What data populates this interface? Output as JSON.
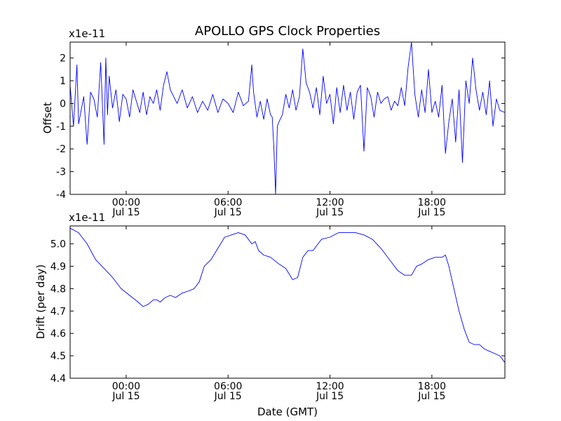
{
  "title": "APOLLO GPS Clock Properties",
  "colors": {
    "line": "#0000ff",
    "axes": "#000000",
    "background": "#ffffff"
  },
  "chart_data": [
    {
      "type": "line",
      "title": "APOLLO GPS Clock Properties",
      "ylabel": "Offset",
      "xlabel": "",
      "scale_label": "x1e-11",
      "x_unit": "hours relative to Jul 15 00:00 GMT",
      "xlim": [
        -3.3,
        22.3
      ],
      "ylim": [
        -4,
        2.7
      ],
      "yticks": [
        -4,
        -3,
        -2,
        -1,
        0,
        1,
        2
      ],
      "xticks": [
        {
          "x": 0,
          "time": "00:00",
          "date": "Jul 15"
        },
        {
          "x": 6,
          "time": "06:00",
          "date": "Jul 15"
        },
        {
          "x": 12,
          "time": "12:00",
          "date": "Jul 15"
        },
        {
          "x": 18,
          "time": "18:00",
          "date": "Jul 15"
        }
      ],
      "grid": false,
      "series": [
        {
          "color": "#0000ff",
          "x": [
            -3.3,
            -3.1,
            -2.9,
            -2.8,
            -2.5,
            -2.3,
            -2.1,
            -1.9,
            -1.7,
            -1.5,
            -1.3,
            -1.2,
            -1.1,
            -1.0,
            -0.8,
            -0.6,
            -0.4,
            -0.2,
            0.0,
            0.2,
            0.4,
            0.6,
            0.8,
            1.0,
            1.2,
            1.4,
            1.6,
            1.8,
            2.0,
            2.2,
            2.4,
            2.6,
            2.8,
            3.0,
            3.3,
            3.6,
            3.9,
            4.2,
            4.5,
            4.8,
            5.1,
            5.4,
            5.7,
            6.0,
            6.3,
            6.6,
            6.9,
            7.2,
            7.4,
            7.5,
            7.7,
            7.9,
            8.1,
            8.3,
            8.5,
            8.6,
            8.7,
            8.8,
            8.9,
            9.0,
            9.2,
            9.4,
            9.6,
            9.8,
            10.0,
            10.2,
            10.4,
            10.6,
            10.8,
            11.0,
            11.2,
            11.4,
            11.6,
            11.8,
            12.0,
            12.2,
            12.4,
            12.6,
            12.8,
            13.0,
            13.2,
            13.4,
            13.6,
            13.8,
            14.0,
            14.2,
            14.4,
            14.6,
            14.8,
            15.0,
            15.2,
            15.4,
            15.6,
            15.8,
            16.0,
            16.2,
            16.4,
            16.6,
            16.8,
            17.0,
            17.2,
            17.4,
            17.6,
            17.8,
            18.0,
            18.2,
            18.4,
            18.6,
            18.8,
            19.0,
            19.2,
            19.4,
            19.6,
            19.8,
            20.0,
            20.2,
            20.4,
            20.6,
            20.8,
            21.0,
            21.2,
            21.4,
            21.6,
            21.8,
            22.0,
            22.3
          ],
          "y": [
            0.8,
            -1.0,
            1.7,
            -0.9,
            0.3,
            -1.8,
            0.5,
            0.2,
            -0.6,
            1.8,
            -1.8,
            2.0,
            -0.5,
            1.2,
            -0.2,
            0.6,
            -0.8,
            0.4,
            0.2,
            -0.6,
            0.6,
            0.1,
            -0.4,
            0.5,
            -0.5,
            0.3,
            0.0,
            0.6,
            -0.3,
            0.8,
            1.4,
            0.6,
            0.3,
            0.0,
            0.6,
            -0.2,
            0.3,
            -0.4,
            0.1,
            -0.3,
            0.4,
            -0.4,
            0.2,
            0.0,
            -0.4,
            0.5,
            -0.1,
            0.1,
            1.7,
            0.5,
            -0.6,
            0.1,
            -0.7,
            0.2,
            -0.5,
            -0.6,
            -2.0,
            -4.0,
            -1.0,
            -0.8,
            -0.5,
            0.4,
            -0.2,
            0.6,
            -0.3,
            0.3,
            2.4,
            0.9,
            0.5,
            -0.2,
            0.7,
            -0.5,
            1.2,
            0.0,
            0.4,
            -0.9,
            0.7,
            -0.4,
            0.8,
            -0.3,
            0.5,
            -0.7,
            0.5,
            0.8,
            -2.1,
            0.7,
            0.3,
            -0.6,
            0.5,
            0.0,
            0.2,
            0.3,
            -0.3,
            0.1,
            -0.1,
            0.7,
            -0.1,
            1.6,
            2.7,
            0.4,
            -0.6,
            0.6,
            -0.4,
            1.5,
            -0.4,
            0.1,
            -0.6,
            0.8,
            -2.2,
            -0.8,
            0.2,
            -1.7,
            0.6,
            -2.6,
            1.0,
            0.0,
            2.0,
            0.6,
            -0.3,
            0.5,
            -0.5,
            1.0,
            -1.0,
            0.2,
            -0.3,
            -0.4
          ]
        }
      ]
    },
    {
      "type": "line",
      "title": "",
      "ylabel": "Drift (per day)",
      "xlabel": "Date (GMT)",
      "scale_label": "x1e-11",
      "x_unit": "hours relative to Jul 15 00:00 GMT",
      "xlim": [
        -3.3,
        22.3
      ],
      "ylim": [
        4.4,
        5.08
      ],
      "yticks": [
        4.4,
        4.5,
        4.6,
        4.7,
        4.8,
        4.9,
        5.0
      ],
      "ytick_labels": [
        "4.4",
        "4.5",
        "4.6",
        "4.7",
        "4.8",
        "4.9",
        "5.0"
      ],
      "xticks": [
        {
          "x": 0,
          "time": "00:00",
          "date": "Jul 15"
        },
        {
          "x": 6,
          "time": "06:00",
          "date": "Jul 15"
        },
        {
          "x": 12,
          "time": "12:00",
          "date": "Jul 15"
        },
        {
          "x": 18,
          "time": "18:00",
          "date": "Jul 15"
        }
      ],
      "grid": false,
      "series": [
        {
          "color": "#0000ff",
          "x": [
            -3.3,
            -2.8,
            -2.3,
            -1.8,
            -1.3,
            -0.8,
            -0.3,
            0.2,
            0.7,
            1.0,
            1.3,
            1.6,
            1.8,
            2.0,
            2.3,
            2.6,
            2.9,
            3.3,
            3.7,
            4.0,
            4.3,
            4.6,
            5.0,
            5.4,
            5.8,
            6.2,
            6.6,
            7.0,
            7.4,
            7.6,
            7.8,
            8.1,
            8.5,
            9.0,
            9.4,
            9.8,
            10.1,
            10.4,
            10.7,
            11.0,
            11.5,
            12.0,
            12.5,
            13.0,
            13.5,
            14.0,
            14.5,
            15.0,
            15.5,
            16.0,
            16.4,
            16.8,
            17.1,
            17.4,
            17.8,
            18.2,
            18.6,
            18.8,
            19.0,
            19.3,
            19.6,
            19.9,
            20.2,
            20.5,
            20.8,
            21.1,
            21.4,
            21.7,
            22.0,
            22.3
          ],
          "y": [
            5.07,
            5.05,
            5.0,
            4.93,
            4.89,
            4.85,
            4.8,
            4.77,
            4.74,
            4.72,
            4.73,
            4.75,
            4.75,
            4.74,
            4.76,
            4.77,
            4.76,
            4.78,
            4.79,
            4.8,
            4.83,
            4.9,
            4.93,
            4.98,
            5.03,
            5.04,
            5.05,
            5.04,
            5.0,
            5.01,
            4.97,
            4.95,
            4.94,
            4.91,
            4.89,
            4.84,
            4.85,
            4.94,
            4.97,
            4.97,
            5.02,
            5.03,
            5.05,
            5.05,
            5.05,
            5.04,
            5.02,
            4.98,
            4.93,
            4.88,
            4.86,
            4.86,
            4.9,
            4.91,
            4.93,
            4.94,
            4.94,
            4.95,
            4.9,
            4.8,
            4.7,
            4.62,
            4.56,
            4.55,
            4.55,
            4.53,
            4.52,
            4.51,
            4.5,
            4.47
          ]
        }
      ]
    }
  ]
}
